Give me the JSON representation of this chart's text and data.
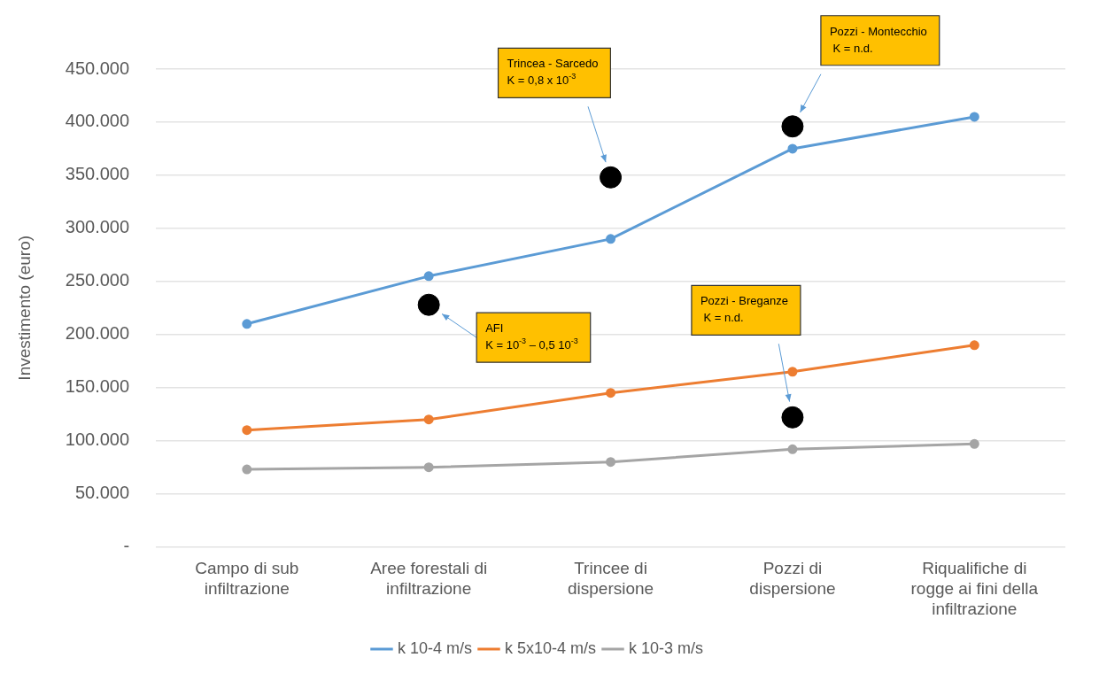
{
  "chart_data": {
    "type": "line",
    "ylabel": "Investimento (euro)",
    "categories": [
      "Campo di sub infiltrazione",
      "Aree forestali di infiltrazione",
      "Trincee di dispersione",
      "Pozzi di dispersione",
      "Riqualifiche di rogge ai fini della infiltrazione"
    ],
    "series": [
      {
        "name": "k 10-4 m/s",
        "color": "#5b9bd5",
        "values": [
          210000,
          255000,
          290000,
          375000,
          405000
        ]
      },
      {
        "name": "k 5x10-4 m/s",
        "color": "#ed7d31",
        "values": [
          110000,
          120000,
          145000,
          165000,
          190000
        ]
      },
      {
        "name": "k 10-3 m/s",
        "color": "#a5a5a5",
        "values": [
          73000,
          75000,
          80000,
          92000,
          97000
        ]
      },
      {
        "type": "scatter",
        "color": "#000000",
        "x": [
          "Aree forestali di infiltrazione",
          "Trincee di dispersione",
          "Pozzi di dispersione",
          "Pozzi di dispersione"
        ],
        "values": [
          228000,
          348000,
          396000,
          122000
        ]
      }
    ],
    "ylim": [
      0,
      450000
    ],
    "yticks": [
      {
        "value": 0,
        "label": "-"
      },
      {
        "value": 50000,
        "label": "50.000"
      },
      {
        "value": 100000,
        "label": "100.000"
      },
      {
        "value": 150000,
        "label": "150.000"
      },
      {
        "value": 200000,
        "label": "200.000"
      },
      {
        "value": 250000,
        "label": "250.000"
      },
      {
        "value": 300000,
        "label": "300.000"
      },
      {
        "value": 350000,
        "label": "350.000"
      },
      {
        "value": 400000,
        "label": "400.000"
      },
      {
        "value": 450000,
        "label": "450.000"
      }
    ],
    "grid": "y",
    "legend": "bottom",
    "marker": "circle",
    "line_style": "solid",
    "annotations": [
      "AFI\nK = 10$^{-3}$ – 0,5 10$^{-3}$",
      "Trincea - Sarcedo\nK = 0,8 x 10$^{-3}$",
      "Pozzi - Montecchio\n K = n.d.",
      "Pozzi - Breganze\n K = n.d."
    ]
  }
}
